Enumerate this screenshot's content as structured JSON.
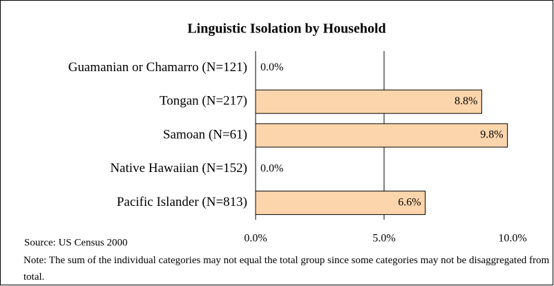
{
  "chart_data": {
    "type": "bar",
    "orientation": "horizontal",
    "title": "Linguistic Isolation by Household",
    "categories": [
      "Guamanian or Chamarro (N=121)",
      "Tongan (N=217)",
      "Samoan (N=61)",
      "Native Hawaiian (N=152)",
      "Pacific Islander (N=813)"
    ],
    "values": [
      0,
      8.8,
      9.8,
      0,
      6.6
    ],
    "value_labels": [
      "0.0%",
      "8.8%",
      "9.8%",
      "0.0%",
      "6.6%"
    ],
    "color": "#fcd5ac",
    "xlim": [
      0,
      10
    ],
    "xticks": [
      {
        "value": 0,
        "label": "0.0%"
      },
      {
        "value": 5,
        "label": "5.0%"
      },
      {
        "value": 10,
        "label": "10.0%"
      }
    ],
    "grid": true,
    "source": "Source: US Census 2000",
    "note": "Note: The sum of the individual categories may not equal the total group since some categories may not be disaggregated from total."
  }
}
